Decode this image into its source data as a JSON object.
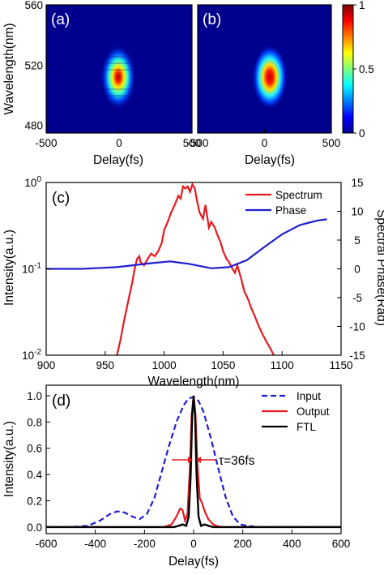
{
  "chart_data": [
    {
      "id": "a",
      "type": "heatmap",
      "panel_label": "(a)",
      "xlabel": "Delay(fs)",
      "ylabel": "Wavelength(nm)",
      "xlim": [
        -500,
        500
      ],
      "ylim": [
        475,
        560
      ],
      "xticks": [
        "-500",
        "0",
        "500"
      ],
      "yticks": [
        "480",
        "520",
        "560"
      ],
      "blob": {
        "center_delay": 0,
        "center_wavelength": 516,
        "delay_width": 60,
        "wavelength_width": 22,
        "peak": 1.0,
        "fringes": true
      },
      "colormap": "jet"
    },
    {
      "id": "b",
      "type": "heatmap",
      "panel_label": "(b)",
      "xlabel": "Delay(fs)",
      "xlim": [
        -500,
        500
      ],
      "ylim": [
        475,
        560
      ],
      "xticks": [
        "-500",
        "0",
        "500"
      ],
      "blob": {
        "center_delay": 0,
        "center_wavelength": 516,
        "delay_width": 60,
        "wavelength_width": 22,
        "peak": 1.0,
        "fringes": false
      },
      "colorbar": {
        "min": 0,
        "max": 1,
        "ticks": [
          "0",
          "0.5",
          "1"
        ]
      },
      "colormap": "jet"
    },
    {
      "id": "c",
      "type": "line",
      "panel_label": "(c)",
      "xlabel": "Wavelength(nm)",
      "ylabel": "Intensity(a.u.)",
      "y2label": "Spectral Phase(Rad)",
      "xlim": [
        900,
        1150
      ],
      "ylim_log": [
        0.01,
        1.0
      ],
      "y2lim": [
        -15,
        15
      ],
      "xticks": [
        "900",
        "950",
        "1000",
        "1050",
        "1100",
        "1150"
      ],
      "yticks": [
        "10^-2",
        "10^-1",
        "10^0"
      ],
      "y2ticks": [
        "-15",
        "-10",
        "-5",
        "0",
        "5",
        "10",
        "15"
      ],
      "legend": [
        "Spectrum",
        "Phase"
      ],
      "legend_position": "top-right",
      "series": [
        {
          "name": "Spectrum",
          "color": "#e8191e",
          "axis": "left-log",
          "x": [
            960,
            963,
            966,
            970,
            973,
            975,
            977,
            979,
            980,
            983,
            986,
            989,
            992,
            995,
            998,
            1000,
            1003,
            1006,
            1009,
            1012,
            1014,
            1016,
            1018,
            1020,
            1022,
            1024,
            1026,
            1028,
            1030,
            1033,
            1035,
            1038,
            1040,
            1043,
            1045,
            1048,
            1050,
            1053,
            1055,
            1058,
            1060,
            1062,
            1065,
            1068,
            1071,
            1074,
            1077,
            1080,
            1083,
            1086,
            1090,
            1093
          ],
          "y": [
            0.01,
            0.015,
            0.025,
            0.045,
            0.07,
            0.1,
            0.13,
            0.14,
            0.12,
            0.11,
            0.13,
            0.15,
            0.14,
            0.16,
            0.2,
            0.28,
            0.35,
            0.45,
            0.55,
            0.7,
            0.65,
            0.9,
            0.85,
            0.9,
            0.78,
            0.95,
            0.85,
            0.6,
            0.45,
            0.38,
            0.55,
            0.3,
            0.35,
            0.3,
            0.25,
            0.2,
            0.16,
            0.13,
            0.12,
            0.1,
            0.09,
            0.11,
            0.08,
            0.055,
            0.045,
            0.035,
            0.028,
            0.022,
            0.018,
            0.015,
            0.012,
            0.01
          ]
        },
        {
          "name": "Phase",
          "color": "#1f1fcf",
          "axis": "right",
          "x": [
            900,
            930,
            960,
            990,
            1005,
            1020,
            1040,
            1055,
            1070,
            1085,
            1100,
            1115,
            1130,
            1138
          ],
          "y": [
            0,
            0,
            0.3,
            1.0,
            1.3,
            0.9,
            0.1,
            0.3,
            1.5,
            3.8,
            6.0,
            7.6,
            8.4,
            8.6
          ]
        }
      ]
    },
    {
      "id": "d",
      "type": "line",
      "panel_label": "(d)",
      "xlabel": "Delay(fs)",
      "ylabel": "Intensity(a.u.)",
      "xlim": [
        -600,
        600
      ],
      "ylim": [
        -0.05,
        1.08
      ],
      "xticks": [
        "-600",
        "-400",
        "-200",
        "0",
        "200",
        "400",
        "600"
      ],
      "yticks": [
        "0.0",
        "0.2",
        "0.4",
        "0.6",
        "0.8",
        "1.0"
      ],
      "legend": [
        "Input",
        "Output",
        "FTL"
      ],
      "legend_position": "top-right",
      "annotation": "τ=36fs",
      "series": [
        {
          "name": "Input",
          "color": "#1f1fcf",
          "dash": true,
          "x": [
            -600,
            -500,
            -430,
            -380,
            -340,
            -310,
            -280,
            -250,
            -220,
            -190,
            -160,
            -130,
            -100,
            -70,
            -40,
            -20,
            0,
            20,
            40,
            70,
            100,
            130,
            160,
            190,
            220,
            260,
            300,
            400,
            500,
            600
          ],
          "y": [
            0,
            0.0,
            0.01,
            0.05,
            0.1,
            0.12,
            0.11,
            0.08,
            0.06,
            0.1,
            0.22,
            0.42,
            0.62,
            0.8,
            0.93,
            0.98,
            0.99,
            0.96,
            0.88,
            0.68,
            0.45,
            0.23,
            0.08,
            0.02,
            0.01,
            0.0,
            0.0,
            0,
            0,
            0
          ]
        },
        {
          "name": "Output",
          "color": "#e8191e",
          "x": [
            -600,
            -120,
            -90,
            -70,
            -55,
            -45,
            -35,
            -25,
            -15,
            -8,
            0,
            8,
            15,
            25,
            35,
            45,
            60,
            80,
            100,
            120,
            600
          ],
          "y": [
            0,
            0,
            0.02,
            0.08,
            0.14,
            0.13,
            0.05,
            0.1,
            0.45,
            0.85,
            1.0,
            0.85,
            0.5,
            0.22,
            0.18,
            0.12,
            0.06,
            0.02,
            0.005,
            0,
            0
          ]
        },
        {
          "name": "FTL",
          "color": "#000000",
          "x": [
            -600,
            -80,
            -60,
            -45,
            -30,
            -20,
            -12,
            -6,
            0,
            6,
            12,
            20,
            30,
            45,
            60,
            80,
            600
          ],
          "y": [
            0,
            0,
            0.01,
            0.02,
            0.01,
            0.08,
            0.4,
            0.85,
            1.0,
            0.85,
            0.4,
            0.08,
            0.01,
            0.02,
            0.01,
            0,
            0
          ]
        }
      ]
    }
  ]
}
